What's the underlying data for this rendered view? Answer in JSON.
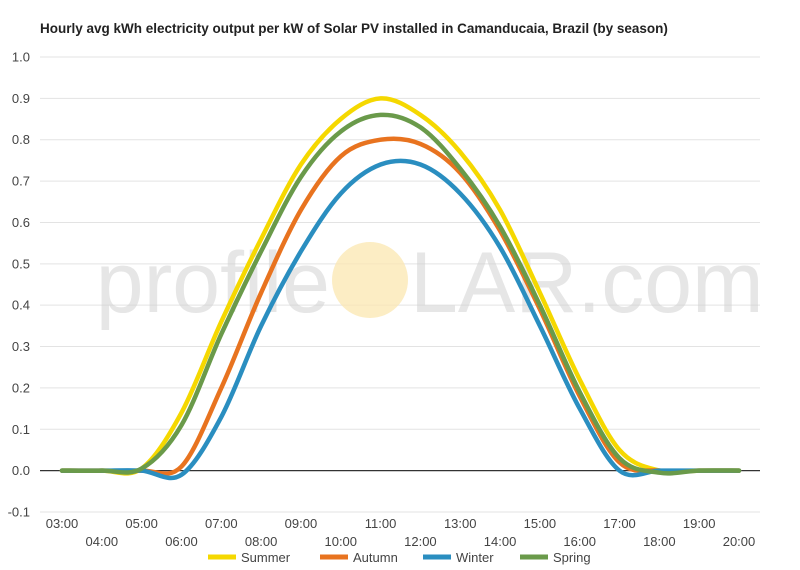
{
  "chart_data": {
    "type": "line",
    "title": "Hourly avg kWh electricity output per kW of Solar PV installed in Camanducaia, Brazil (by season)",
    "xlabel": "",
    "ylabel": "",
    "x": [
      "03:00",
      "04:00",
      "05:00",
      "06:00",
      "07:00",
      "08:00",
      "09:00",
      "10:00",
      "11:00",
      "12:00",
      "13:00",
      "14:00",
      "15:00",
      "16:00",
      "17:00",
      "18:00",
      "19:00",
      "20:00"
    ],
    "ylim": [
      -0.1,
      1.0
    ],
    "yticks": [
      "-0.1",
      "0.0",
      "0.1",
      "0.2",
      "0.3",
      "0.4",
      "0.5",
      "0.6",
      "0.7",
      "0.8",
      "0.9",
      "1.0"
    ],
    "grid": true,
    "legend_position": "bottom",
    "series": [
      {
        "name": "Summer",
        "color": "#f5d800",
        "values": [
          0,
          0,
          0.005,
          0.14,
          0.36,
          0.56,
          0.74,
          0.85,
          0.9,
          0.86,
          0.77,
          0.63,
          0.43,
          0.22,
          0.05,
          0.0,
          0,
          0
        ]
      },
      {
        "name": "Autumn",
        "color": "#e8731f",
        "values": [
          0,
          0,
          0,
          0.01,
          0.2,
          0.43,
          0.63,
          0.76,
          0.8,
          0.79,
          0.72,
          0.58,
          0.39,
          0.18,
          0.02,
          0,
          0,
          0
        ]
      },
      {
        "name": "Winter",
        "color": "#2a8ec0",
        "values": [
          0,
          0,
          0,
          -0.01,
          0.13,
          0.35,
          0.53,
          0.67,
          0.74,
          0.74,
          0.67,
          0.54,
          0.35,
          0.15,
          0.0,
          0,
          0,
          0
        ]
      },
      {
        "name": "Spring",
        "color": "#6a9a4a",
        "values": [
          0,
          0,
          0.005,
          0.11,
          0.33,
          0.53,
          0.71,
          0.82,
          0.86,
          0.83,
          0.73,
          0.59,
          0.4,
          0.19,
          0.03,
          -0.005,
          0,
          0
        ]
      }
    ]
  },
  "watermark": {
    "left": "profile",
    "right": "LAR.com",
    "sun_color": "#fbe7b0"
  }
}
